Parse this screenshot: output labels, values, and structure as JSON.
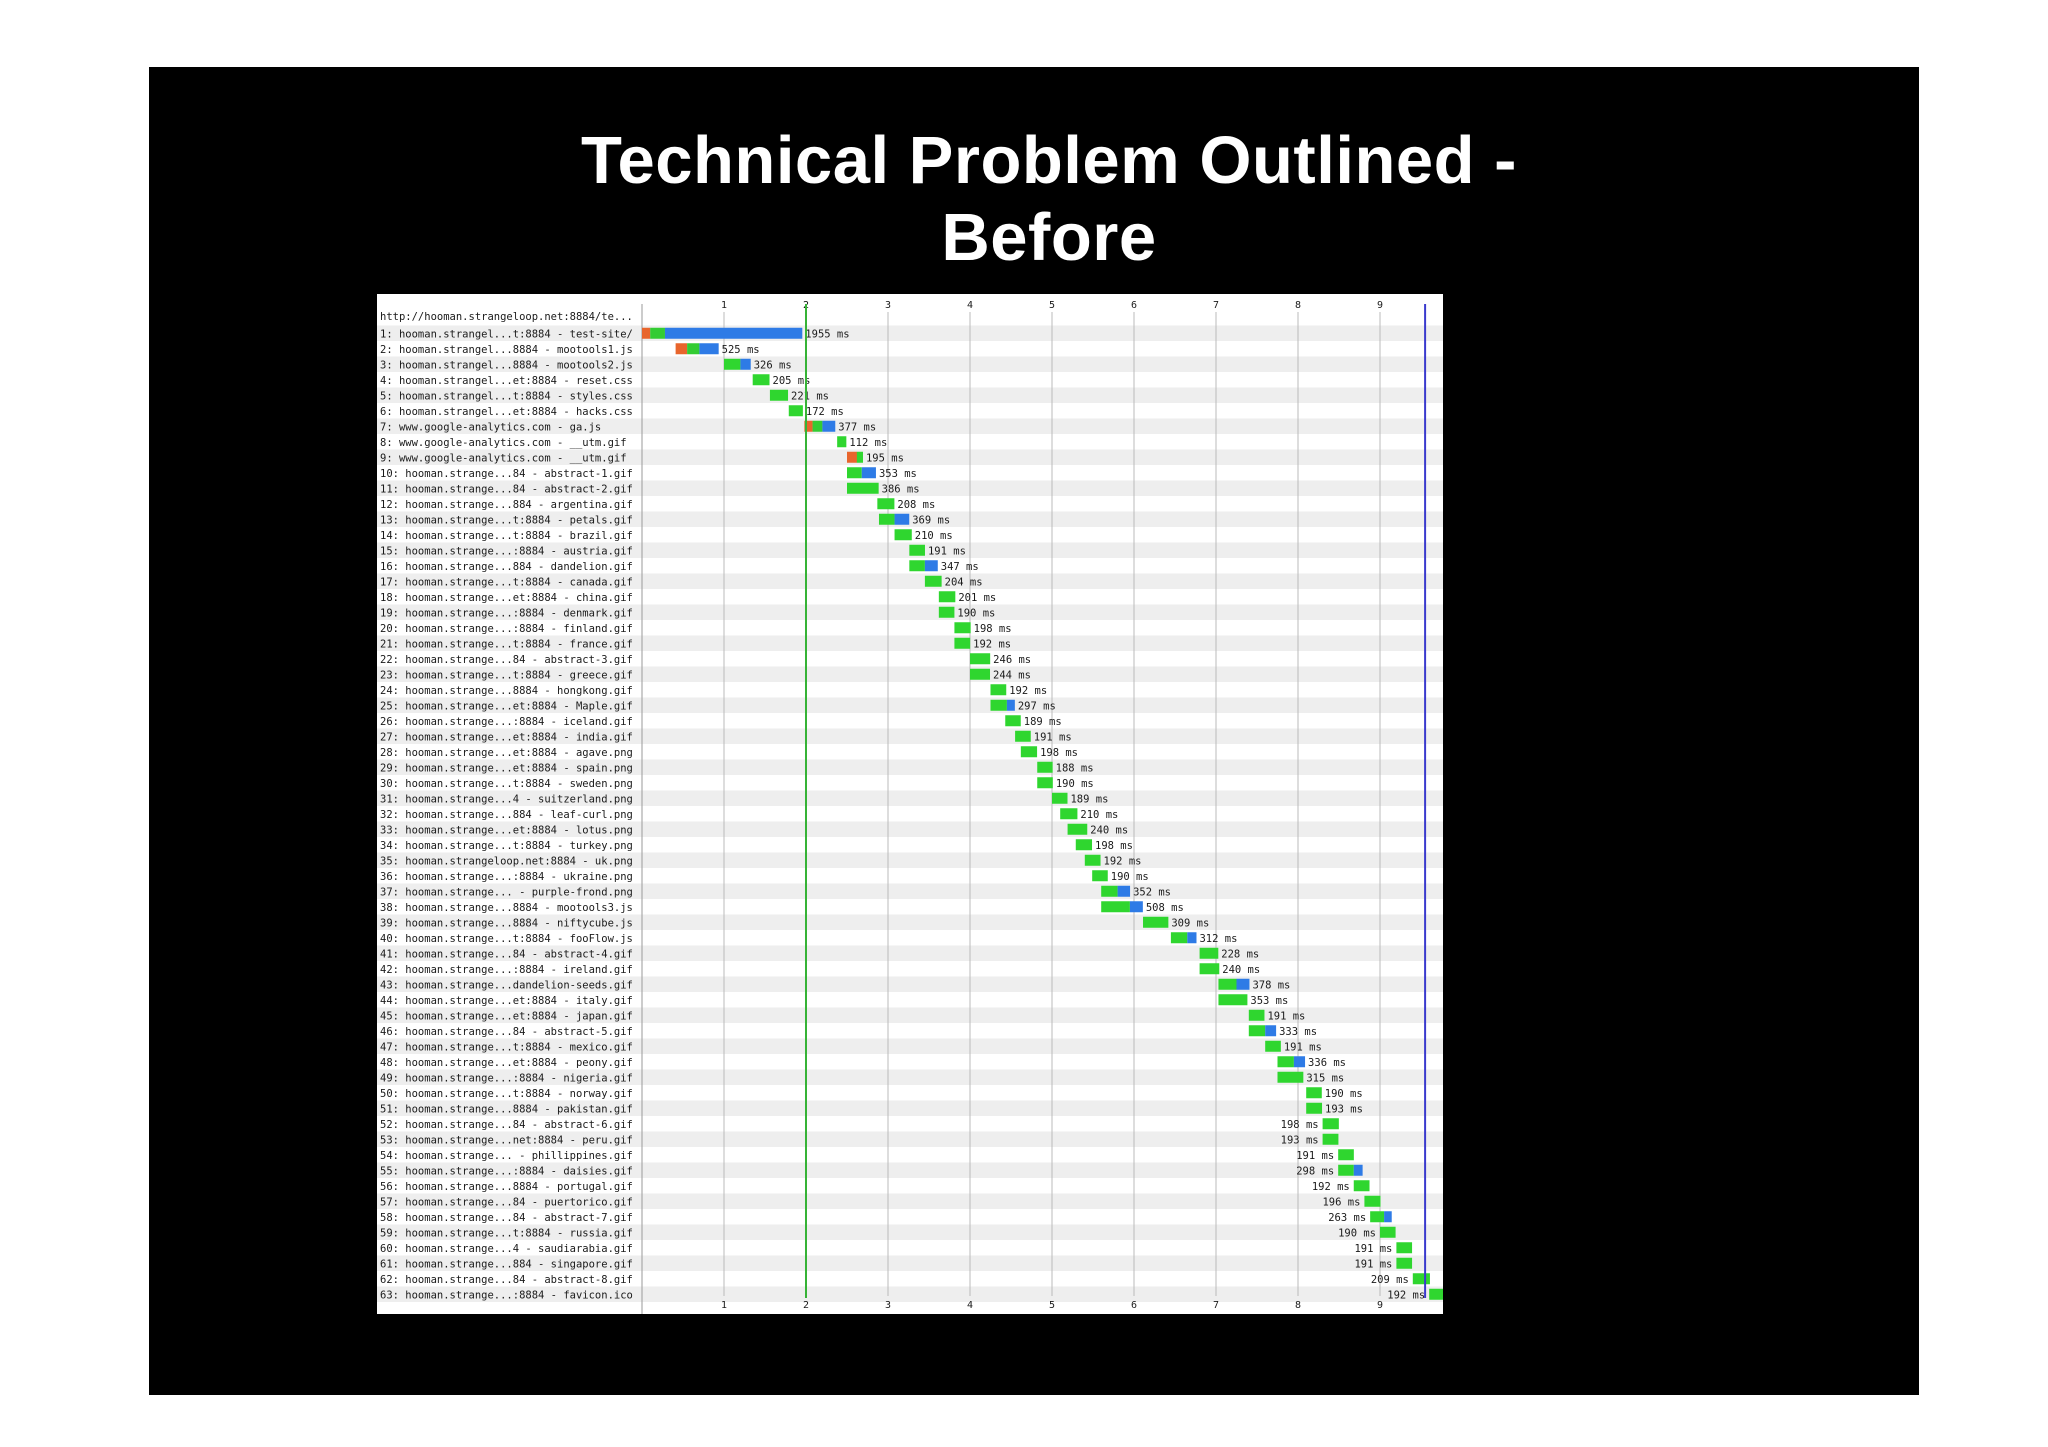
{
  "slide": {
    "title": "Technical Problem Outlined - Before"
  },
  "colors": {
    "dns": "#e8652c",
    "connect": "#33cc33",
    "ttfb": "#2e7be6",
    "content": "#2fd62f",
    "start_render_line": "#36b336",
    "document_complete_line": "#3a3acd",
    "grid": "#bbbbbb",
    "row_stripe": "#eeeeee"
  },
  "chart_data": {
    "type": "waterfall",
    "page_url": "http://hooman.strangeloop.net:8884/te...",
    "x_ticks": [
      "1",
      "2",
      "3",
      "4",
      "5",
      "6",
      "7",
      "8",
      "9"
    ],
    "xlim": [
      0.0,
      9.55
    ],
    "x_unit": "seconds",
    "start_render_s": 2.0,
    "document_complete_s": 9.55,
    "requests": [
      {
        "label": "1: hooman.strangel...t:8884 - test-site/",
        "start": 0.0,
        "ms": 1955,
        "duration_label": "1955 ms",
        "dns": 0.0,
        "connect": 0.1,
        "ttfb": 0.28,
        "connect2": 0.37
      },
      {
        "label": "2: hooman.strangel...8884 - mootools1.js",
        "start": 0.41,
        "ms": 525,
        "duration_label": "525 ms",
        "dns": 0.41,
        "connect": 0.55,
        "ttfb": 0.7,
        "connect2": 0.0
      },
      {
        "label": "3: hooman.strangel...8884 - mootools2.js",
        "start": 1.0,
        "ms": 326,
        "duration_label": "326 ms",
        "ttfb": 1.2
      },
      {
        "label": "4: hooman.strangel...et:8884 - reset.css",
        "start": 1.35,
        "ms": 205,
        "duration_label": "205 ms"
      },
      {
        "label": "5: hooman.strangel...t:8884 - styles.css",
        "start": 1.56,
        "ms": 221,
        "duration_label": "221 ms"
      },
      {
        "label": "6: hooman.strangel...et:8884 - hacks.css",
        "start": 1.79,
        "ms": 172,
        "duration_label": "172 ms"
      },
      {
        "label": "7: www.google-analytics.com - ga.js",
        "start": 1.98,
        "ms": 377,
        "duration_label": "377 ms",
        "dns": 1.98,
        "connect": 2.08,
        "ttfb": 2.2
      },
      {
        "label": "8: www.google-analytics.com - __utm.gif",
        "start": 2.38,
        "ms": 112,
        "duration_label": "112 ms"
      },
      {
        "label": "9: www.google-analytics.com - __utm.gif",
        "start": 2.5,
        "ms": 195,
        "duration_label": "195 ms",
        "dns": 2.5
      },
      {
        "label": "10: hooman.strange...84 - abstract-1.gif",
        "start": 2.5,
        "ms": 353,
        "duration_label": "353 ms",
        "ttfb": 2.68
      },
      {
        "label": "11: hooman.strange...84 - abstract-2.gif",
        "start": 2.5,
        "ms": 386,
        "duration_label": "386 ms"
      },
      {
        "label": "12: hooman.strange...884 - argentina.gif",
        "start": 2.87,
        "ms": 208,
        "duration_label": "208 ms"
      },
      {
        "label": "13: hooman.strange...t:8884 - petals.gif",
        "start": 2.89,
        "ms": 369,
        "duration_label": "369 ms",
        "ttfb": 3.08
      },
      {
        "label": "14: hooman.strange...t:8884 - brazil.gif",
        "start": 3.08,
        "ms": 210,
        "duration_label": "210 ms"
      },
      {
        "label": "15: hooman.strange...:8884 - austria.gif",
        "start": 3.26,
        "ms": 191,
        "duration_label": "191 ms"
      },
      {
        "label": "16: hooman.strange...884 - dandelion.gif",
        "start": 3.26,
        "ms": 347,
        "duration_label": "347 ms",
        "ttfb": 3.45
      },
      {
        "label": "17: hooman.strange...t:8884 - canada.gif",
        "start": 3.45,
        "ms": 204,
        "duration_label": "204 ms"
      },
      {
        "label": "18: hooman.strange...et:8884 - china.gif",
        "start": 3.62,
        "ms": 201,
        "duration_label": "201 ms"
      },
      {
        "label": "19: hooman.strange...:8884 - denmark.gif",
        "start": 3.62,
        "ms": 190,
        "duration_label": "190 ms"
      },
      {
        "label": "20: hooman.strange...:8884 - finland.gif",
        "start": 3.81,
        "ms": 198,
        "duration_label": "198 ms"
      },
      {
        "label": "21: hooman.strange...t:8884 - france.gif",
        "start": 3.81,
        "ms": 192,
        "duration_label": "192 ms"
      },
      {
        "label": "22: hooman.strange...84 - abstract-3.gif",
        "start": 4.0,
        "ms": 246,
        "duration_label": "246 ms"
      },
      {
        "label": "23: hooman.strange...t:8884 - greece.gif",
        "start": 4.0,
        "ms": 244,
        "duration_label": "244 ms"
      },
      {
        "label": "24: hooman.strange...8884 - hongkong.gif",
        "start": 4.25,
        "ms": 192,
        "duration_label": "192 ms"
      },
      {
        "label": "25: hooman.strange...et:8884 - Maple.gif",
        "start": 4.25,
        "ms": 297,
        "duration_label": "297 ms",
        "ttfb": 4.45
      },
      {
        "label": "26: hooman.strange...:8884 - iceland.gif",
        "start": 4.43,
        "ms": 189,
        "duration_label": "189 ms"
      },
      {
        "label": "27: hooman.strange...et:8884 - india.gif",
        "start": 4.55,
        "ms": 191,
        "duration_label": "191 ms"
      },
      {
        "label": "28: hooman.strange...et:8884 - agave.png",
        "start": 4.62,
        "ms": 198,
        "duration_label": "198 ms"
      },
      {
        "label": "29: hooman.strange...et:8884 - spain.png",
        "start": 4.82,
        "ms": 188,
        "duration_label": "188 ms"
      },
      {
        "label": "30: hooman.strange...t:8884 - sweden.png",
        "start": 4.82,
        "ms": 190,
        "duration_label": "190 ms"
      },
      {
        "label": "31: hooman.strange...4 - suitzerland.png",
        "start": 5.0,
        "ms": 189,
        "duration_label": "189 ms"
      },
      {
        "label": "32: hooman.strange...884 - leaf-curl.png",
        "start": 5.1,
        "ms": 210,
        "duration_label": "210 ms"
      },
      {
        "label": "33: hooman.strange...et:8884 - lotus.png",
        "start": 5.19,
        "ms": 240,
        "duration_label": "240 ms"
      },
      {
        "label": "34: hooman.strange...t:8884 - turkey.png",
        "start": 5.29,
        "ms": 198,
        "duration_label": "198 ms"
      },
      {
        "label": "35: hooman.strangeloop.net:8884 - uk.png",
        "start": 5.4,
        "ms": 192,
        "duration_label": "192 ms"
      },
      {
        "label": "36: hooman.strange...:8884 - ukraine.png",
        "start": 5.49,
        "ms": 190,
        "duration_label": "190 ms"
      },
      {
        "label": "37: hooman.strange... - purple-frond.png",
        "start": 5.6,
        "ms": 352,
        "duration_label": "352 ms",
        "ttfb": 5.8
      },
      {
        "label": "38: hooman.strange...8884 - mootools3.js",
        "start": 5.6,
        "ms": 508,
        "duration_label": "508 ms",
        "ttfb": 5.95
      },
      {
        "label": "39: hooman.strange...8884 - niftycube.js",
        "start": 6.11,
        "ms": 309,
        "duration_label": "309 ms"
      },
      {
        "label": "40: hooman.strange...t:8884 - fooFlow.js",
        "start": 6.45,
        "ms": 312,
        "duration_label": "312 ms",
        "ttfb": 6.65
      },
      {
        "label": "41: hooman.strange...84 - abstract-4.gif",
        "start": 6.8,
        "ms": 228,
        "duration_label": "228 ms"
      },
      {
        "label": "42: hooman.strange...:8884 - ireland.gif",
        "start": 6.8,
        "ms": 240,
        "duration_label": "240 ms"
      },
      {
        "label": "43: hooman.strange...dandelion-seeds.gif",
        "start": 7.03,
        "ms": 378,
        "duration_label": "378 ms",
        "ttfb": 7.25
      },
      {
        "label": "44: hooman.strange...et:8884 - italy.gif",
        "start": 7.03,
        "ms": 353,
        "duration_label": "353 ms"
      },
      {
        "label": "45: hooman.strange...et:8884 - japan.gif",
        "start": 7.4,
        "ms": 191,
        "duration_label": "191 ms"
      },
      {
        "label": "46: hooman.strange...84 - abstract-5.gif",
        "start": 7.4,
        "ms": 333,
        "duration_label": "333 ms",
        "ttfb": 7.6
      },
      {
        "label": "47: hooman.strange...t:8884 - mexico.gif",
        "start": 7.6,
        "ms": 191,
        "duration_label": "191 ms"
      },
      {
        "label": "48: hooman.strange...et:8884 - peony.gif",
        "start": 7.75,
        "ms": 336,
        "duration_label": "336 ms",
        "ttfb": 7.95
      },
      {
        "label": "49: hooman.strange...:8884 - nigeria.gif",
        "start": 7.75,
        "ms": 315,
        "duration_label": "315 ms"
      },
      {
        "label": "50: hooman.strange...t:8884 - norway.gif",
        "start": 8.1,
        "ms": 190,
        "duration_label": "190 ms"
      },
      {
        "label": "51: hooman.strange...8884 - pakistan.gif",
        "start": 8.1,
        "ms": 193,
        "duration_label": "193 ms"
      },
      {
        "label": "52: hooman.strange...84 - abstract-6.gif",
        "start": 8.3,
        "ms": 198,
        "duration_label": "198 ms"
      },
      {
        "label": "53: hooman.strange...net:8884 - peru.gif",
        "start": 8.3,
        "ms": 193,
        "duration_label": "193 ms"
      },
      {
        "label": "54: hooman.strange... - phillippines.gif",
        "start": 8.49,
        "ms": 191,
        "duration_label": "191 ms"
      },
      {
        "label": "55: hooman.strange...:8884 - daisies.gif",
        "start": 8.49,
        "ms": 298,
        "duration_label": "298 ms",
        "ttfb": 8.68
      },
      {
        "label": "56: hooman.strange...8884 - portugal.gif",
        "start": 8.68,
        "ms": 192,
        "duration_label": "192 ms"
      },
      {
        "label": "57: hooman.strange...84 - puertorico.gif",
        "start": 8.81,
        "ms": 196,
        "duration_label": "196 ms"
      },
      {
        "label": "58: hooman.strange...84 - abstract-7.gif",
        "start": 8.88,
        "ms": 263,
        "duration_label": "263 ms",
        "ttfb": 9.05
      },
      {
        "label": "59: hooman.strange...t:8884 - russia.gif",
        "start": 9.0,
        "ms": 190,
        "duration_label": "190 ms"
      },
      {
        "label": "60: hooman.strange...4 - saudiarabia.gif",
        "start": 9.2,
        "ms": 191,
        "duration_label": "191 ms"
      },
      {
        "label": "61: hooman.strange...884 - singapore.gif",
        "start": 9.2,
        "ms": 191,
        "duration_label": "191 ms"
      },
      {
        "label": "62: hooman.strange...84 - abstract-8.gif",
        "start": 9.4,
        "ms": 209,
        "duration_label": "209 ms"
      },
      {
        "label": "63: hooman.strange...:8884 - favicon.ico",
        "start": 9.6,
        "ms": 192,
        "duration_label": "192 ms"
      }
    ]
  }
}
